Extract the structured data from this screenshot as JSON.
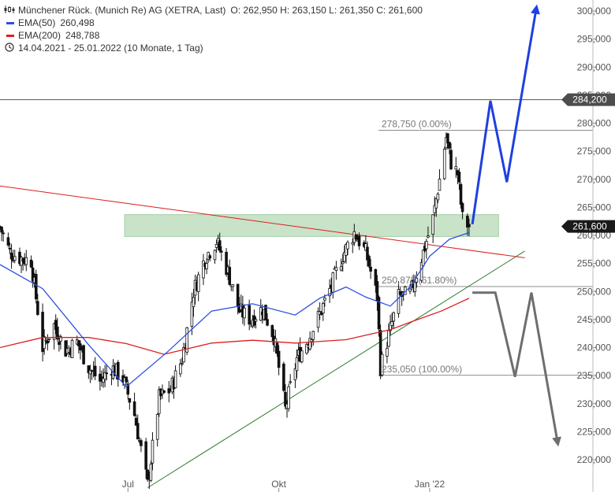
{
  "legend": {
    "title": "Münchener Rück. (Munich Re) AG (XETRA, Last)",
    "ohlc": "O: 262,950   H: 263,150   L: 261,350   C: 261,600",
    "ema50_label": "EMA(50)",
    "ema50_value": "260,498",
    "ema200_label": "EMA(200)",
    "ema200_value": "248,788",
    "period": "14.04.2021 - 25.01.2022   (10 Monate, 1 Tag)"
  },
  "colors": {
    "ema50": "#2b4fe3",
    "ema200": "#dd1e1e",
    "resistance_line": "#dd1e1e",
    "support_line": "#2e7d2e",
    "zone_fill": "#c8e3c8",
    "blue_arrow": "#1f3fe0",
    "grey_arrow": "#6e6e6e",
    "candle": "#111111",
    "badge": "#4d4d4d"
  },
  "chart_data": {
    "type": "candlestick",
    "x_range": [
      "2021-04-14",
      "2022-01-25"
    ],
    "ylim": [
      215000,
      301500
    ],
    "y_ticks": [
      {
        "value": 220000,
        "label": "220,000"
      },
      {
        "value": 225000,
        "label": "225,000"
      },
      {
        "value": 230000,
        "label": "230,000"
      },
      {
        "value": 235000,
        "label": "235,000"
      },
      {
        "value": 240000,
        "label": "240,000"
      },
      {
        "value": 245000,
        "label": "245,000"
      },
      {
        "value": 250000,
        "label": "250,000"
      },
      {
        "value": 255000,
        "label": "255,000"
      },
      {
        "value": 260000,
        "label": "260,000"
      },
      {
        "value": 265000,
        "label": "265,000"
      },
      {
        "value": 270000,
        "label": "270,000"
      },
      {
        "value": 275000,
        "label": "275,000"
      },
      {
        "value": 280000,
        "label": "280,000"
      },
      {
        "value": 285000,
        "label": "285,000"
      },
      {
        "value": 290000,
        "label": "290,000"
      },
      {
        "value": 295000,
        "label": "295,000"
      },
      {
        "value": 300000,
        "label": "300,000"
      }
    ],
    "x_ticks": [
      {
        "date": "2021-07-01",
        "label": "Jul"
      },
      {
        "date": "2021-10-01",
        "label": "Okt"
      },
      {
        "date": "2022-01-01",
        "label": "Jan '22"
      }
    ],
    "price_badges": [
      {
        "value": 284200,
        "label": "284,200"
      },
      {
        "value": 261600,
        "label": "261,600"
      }
    ],
    "fib_levels": [
      {
        "value": 278750,
        "label": "278,750 (0.00%)"
      },
      {
        "value": 250875,
        "label": "250,875 (61.80%)"
      },
      {
        "value": 235050,
        "label": "235,050 (100.00%)"
      }
    ],
    "support_zone": {
      "from_date": "2021-06-29",
      "to_date": "2022-02-12",
      "low": 259800,
      "high": 263700
    },
    "resistance_trendline": [
      {
        "date": "2021-04-14",
        "value": 268800
      },
      {
        "date": "2022-02-28",
        "value": 256000
      }
    ],
    "support_trendline": [
      {
        "date": "2021-07-13",
        "value": 215000
      },
      {
        "date": "2022-02-28",
        "value": 257200
      }
    ],
    "horizontal_line": {
      "value": 284200
    },
    "ema50": [
      {
        "date": "2021-04-14",
        "value": 254800
      },
      {
        "date": "2021-05-10",
        "value": 250500
      },
      {
        "date": "2021-06-07",
        "value": 240500
      },
      {
        "date": "2021-06-30",
        "value": 233000
      },
      {
        "date": "2021-07-25",
        "value": 239200
      },
      {
        "date": "2021-08-21",
        "value": 246500
      },
      {
        "date": "2021-09-15",
        "value": 247800
      },
      {
        "date": "2021-10-11",
        "value": 245800
      },
      {
        "date": "2021-10-26",
        "value": 248800
      },
      {
        "date": "2021-11-11",
        "value": 250800
      },
      {
        "date": "2021-11-23",
        "value": 249000
      },
      {
        "date": "2021-12-08",
        "value": 247400
      },
      {
        "date": "2021-12-20",
        "value": 250800
      },
      {
        "date": "2022-01-01",
        "value": 256300
      },
      {
        "date": "2022-01-13",
        "value": 259300
      },
      {
        "date": "2022-01-25",
        "value": 260498
      }
    ],
    "ema200": [
      {
        "date": "2021-04-14",
        "value": 240000
      },
      {
        "date": "2021-05-10",
        "value": 241800
      },
      {
        "date": "2021-06-07",
        "value": 241800
      },
      {
        "date": "2021-06-30",
        "value": 240700
      },
      {
        "date": "2021-07-23",
        "value": 238800
      },
      {
        "date": "2021-08-21",
        "value": 240800
      },
      {
        "date": "2021-09-15",
        "value": 241300
      },
      {
        "date": "2021-10-11",
        "value": 240800
      },
      {
        "date": "2021-11-11",
        "value": 241400
      },
      {
        "date": "2021-12-08",
        "value": 243200
      },
      {
        "date": "2021-12-20",
        "value": 244500
      },
      {
        "date": "2022-01-08",
        "value": 246500
      },
      {
        "date": "2022-01-25",
        "value": 248788
      }
    ],
    "price_path": [
      {
        "date": "2021-04-14",
        "value": 261500
      },
      {
        "date": "2021-04-20",
        "value": 257000
      },
      {
        "date": "2021-04-26",
        "value": 256000
      },
      {
        "date": "2021-05-03",
        "value": 255500
      },
      {
        "date": "2021-05-10",
        "value": 240000
      },
      {
        "date": "2021-05-17",
        "value": 244000
      },
      {
        "date": "2021-05-24",
        "value": 239500
      },
      {
        "date": "2021-05-31",
        "value": 241000
      },
      {
        "date": "2021-06-07",
        "value": 236500
      },
      {
        "date": "2021-06-14",
        "value": 234000
      },
      {
        "date": "2021-06-21",
        "value": 236500
      },
      {
        "date": "2021-06-28",
        "value": 234500
      },
      {
        "date": "2021-07-05",
        "value": 228000
      },
      {
        "date": "2021-07-13",
        "value": 215500
      },
      {
        "date": "2021-07-20",
        "value": 231000
      },
      {
        "date": "2021-07-27",
        "value": 232500
      },
      {
        "date": "2021-08-03",
        "value": 238000
      },
      {
        "date": "2021-08-10",
        "value": 250000
      },
      {
        "date": "2021-08-17",
        "value": 256000
      },
      {
        "date": "2021-08-24",
        "value": 259000
      },
      {
        "date": "2021-08-31",
        "value": 253500
      },
      {
        "date": "2021-09-07",
        "value": 246500
      },
      {
        "date": "2021-09-14",
        "value": 245000
      },
      {
        "date": "2021-09-21",
        "value": 247000
      },
      {
        "date": "2021-09-28",
        "value": 242000
      },
      {
        "date": "2021-10-05",
        "value": 229000
      },
      {
        "date": "2021-10-12",
        "value": 238000
      },
      {
        "date": "2021-10-19",
        "value": 241500
      },
      {
        "date": "2021-10-26",
        "value": 246000
      },
      {
        "date": "2021-11-02",
        "value": 251000
      },
      {
        "date": "2021-11-09",
        "value": 256500
      },
      {
        "date": "2021-11-16",
        "value": 260500
      },
      {
        "date": "2021-11-23",
        "value": 257000
      },
      {
        "date": "2021-11-30",
        "value": 249000
      },
      {
        "date": "2021-12-02",
        "value": 236500
      },
      {
        "date": "2021-12-06",
        "value": 241000
      },
      {
        "date": "2021-12-13",
        "value": 249000
      },
      {
        "date": "2021-12-20",
        "value": 249500
      },
      {
        "date": "2021-12-27",
        "value": 256000
      },
      {
        "date": "2022-01-03",
        "value": 263000
      },
      {
        "date": "2022-01-07",
        "value": 270000
      },
      {
        "date": "2022-01-11",
        "value": 277500
      },
      {
        "date": "2022-01-14",
        "value": 273000
      },
      {
        "date": "2022-01-18",
        "value": 271000
      },
      {
        "date": "2022-01-21",
        "value": 263000
      },
      {
        "date": "2022-01-25",
        "value": 261600
      }
    ],
    "scenario_up": [
      {
        "date": "2022-01-27",
        "value": 262000
      },
      {
        "date": "2022-02-07",
        "value": 284000
      },
      {
        "date": "2022-02-17",
        "value": 269500
      },
      {
        "date": "2022-03-07",
        "value": 300500
      }
    ],
    "scenario_down": [
      {
        "date": "2022-01-27",
        "value": 249800
      },
      {
        "date": "2022-02-10",
        "value": 249800
      },
      {
        "date": "2022-02-22",
        "value": 234800
      },
      {
        "date": "2022-03-04",
        "value": 249800
      },
      {
        "date": "2022-03-20",
        "value": 223000
      }
    ]
  }
}
